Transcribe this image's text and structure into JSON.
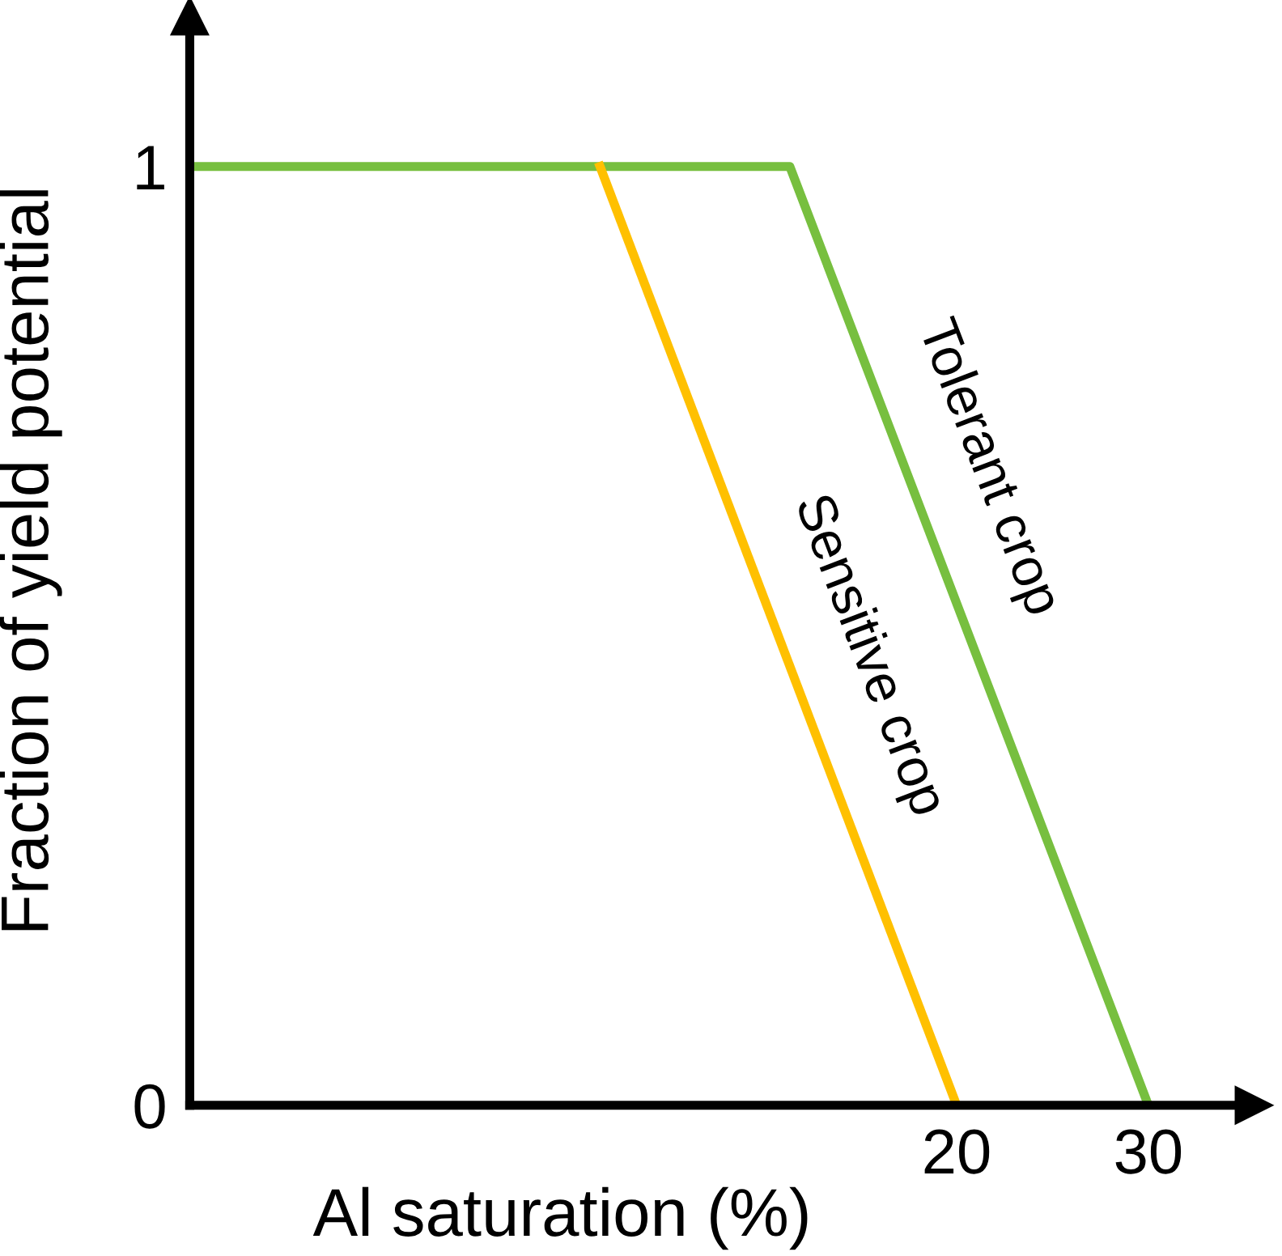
{
  "chart_data": {
    "type": "line",
    "xlabel": "Al saturation (%)",
    "ylabel": "Fraction of yield potential",
    "series": [
      {
        "name": "Tolerant crop",
        "color": "#77bf3f",
        "x": [
          -20,
          11.3,
          30
        ],
        "values": [
          1,
          1,
          0
        ]
      },
      {
        "name": "Sensitive crop",
        "color": "#ffc000",
        "x": [
          1.4,
          20
        ],
        "values": [
          1,
          0
        ]
      }
    ],
    "xlim": [
      -20,
      35.5
    ],
    "xticks": [
      20,
      30
    ],
    "ylim": [
      0,
      1.16
    ],
    "yticks": [
      0,
      1
    ],
    "grid": false,
    "legend": false,
    "marker": "none",
    "line_style": "solid"
  }
}
